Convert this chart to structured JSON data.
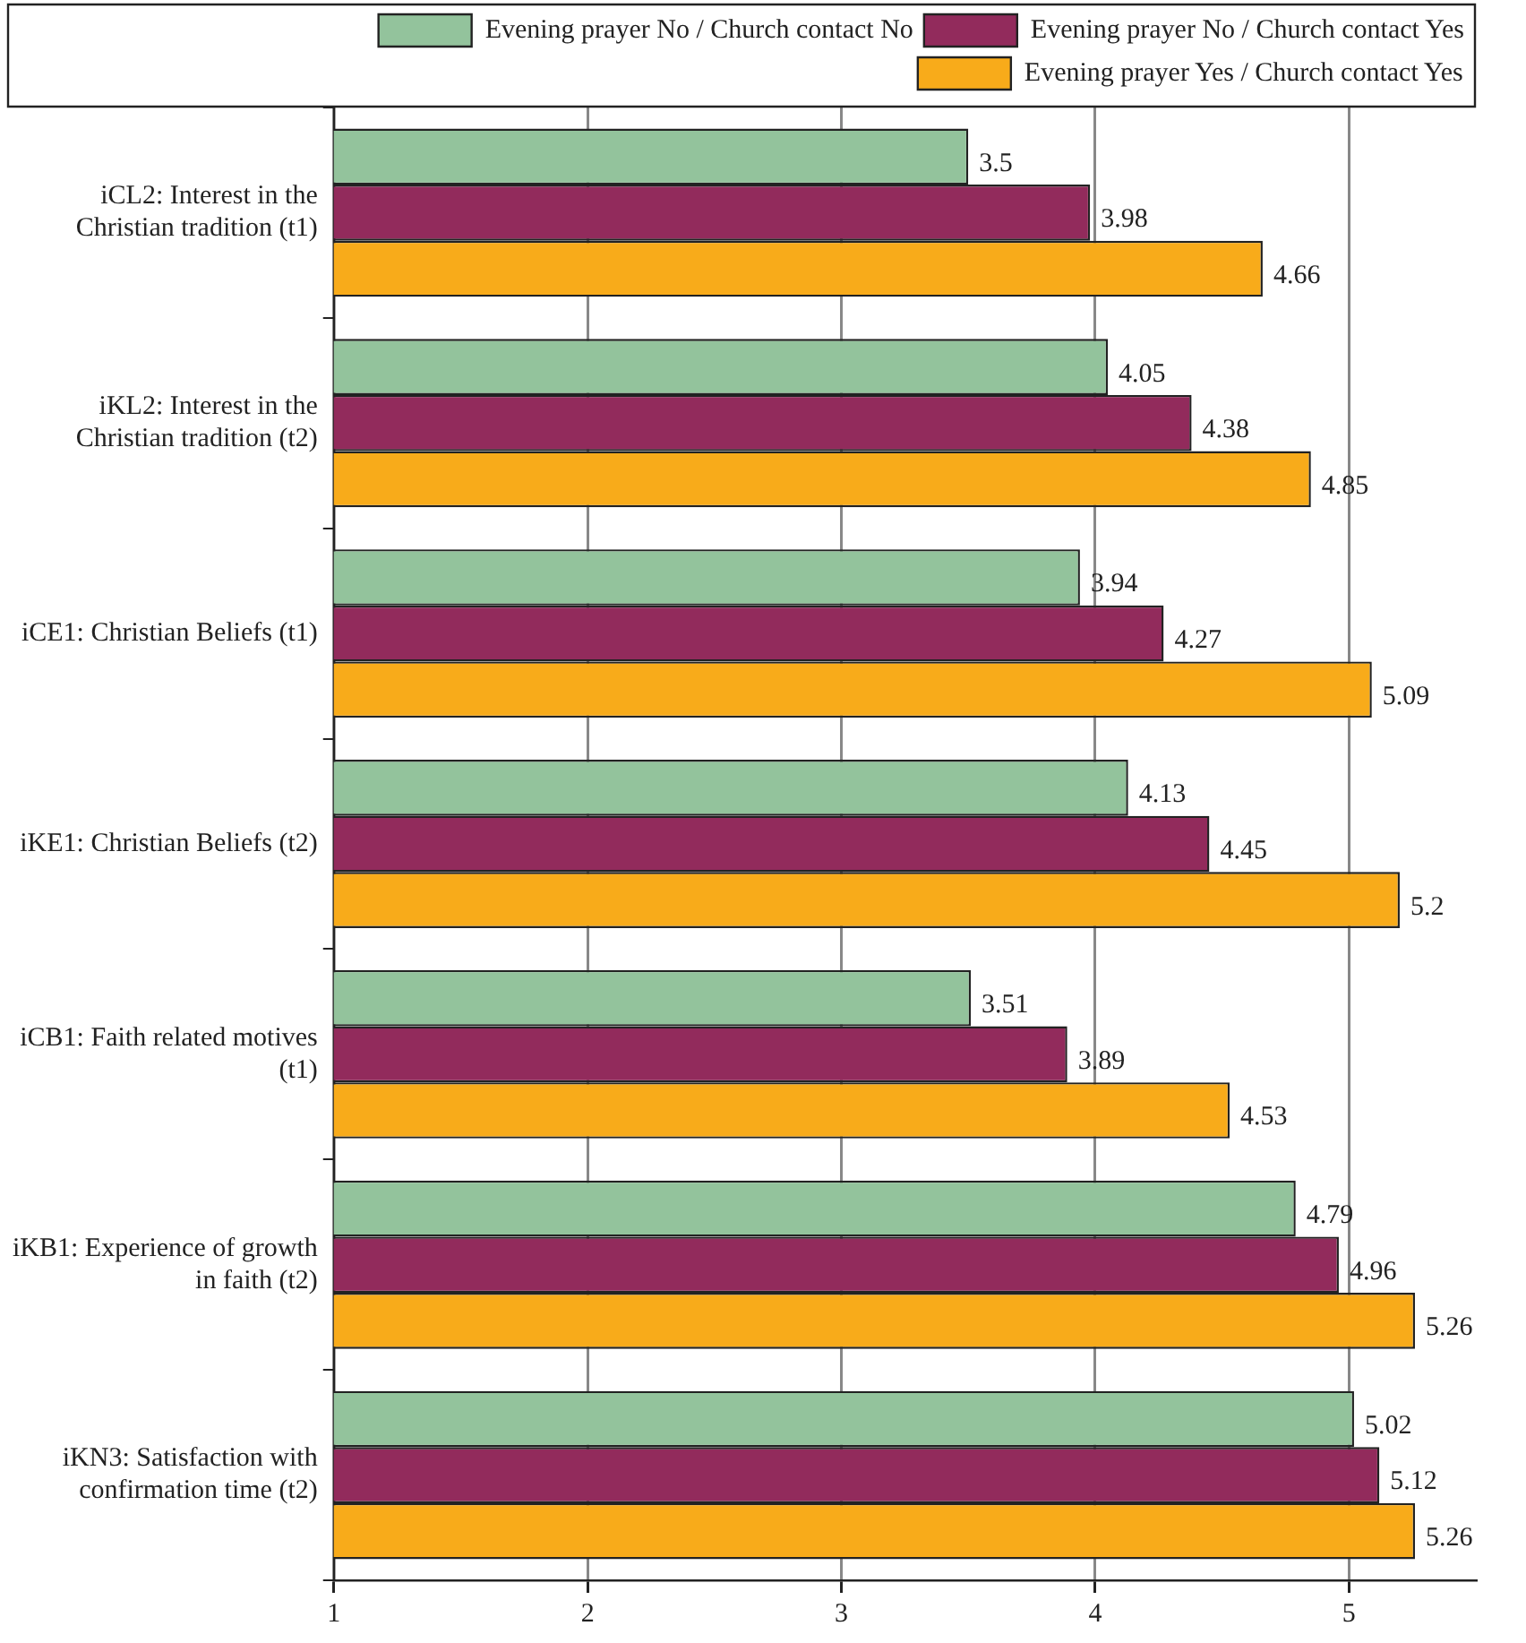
{
  "chart_data": {
    "type": "bar",
    "orientation": "horizontal",
    "categories": [
      "iCL2: Interest in the Christian tradition (t1)",
      "iKL2: Interest in the Christian tradition (t2)",
      "iCE1: Christian Beliefs (t1)",
      "iKE1: Christian Beliefs (t2)",
      "iCB1: Faith related motives (t1)",
      "iKB1: Experience of growth in faith (t2)",
      "iKN3: Satisfaction with confirmation time (t2)"
    ],
    "series": [
      {
        "name": "Evening prayer No / Church contact No",
        "color": "#93c39c",
        "values": [
          3.5,
          4.05,
          3.94,
          4.13,
          3.51,
          4.79,
          5.02
        ]
      },
      {
        "name": "Evening prayer No / Church contact Yes",
        "color": "#922b5c",
        "values": [
          3.98,
          4.38,
          4.27,
          4.45,
          3.89,
          4.96,
          5.12
        ]
      },
      {
        "name": "Evening prayer Yes / Church contact Yes",
        "color": "#f8ab1a",
        "values": [
          4.66,
          4.85,
          5.09,
          5.2,
          4.53,
          5.26,
          5.26
        ]
      }
    ],
    "xlim": [
      1,
      5.5
    ],
    "xticks": [
      1,
      2,
      3,
      4,
      5
    ],
    "grid": "x",
    "legend": "top right",
    "data_labels": true
  }
}
